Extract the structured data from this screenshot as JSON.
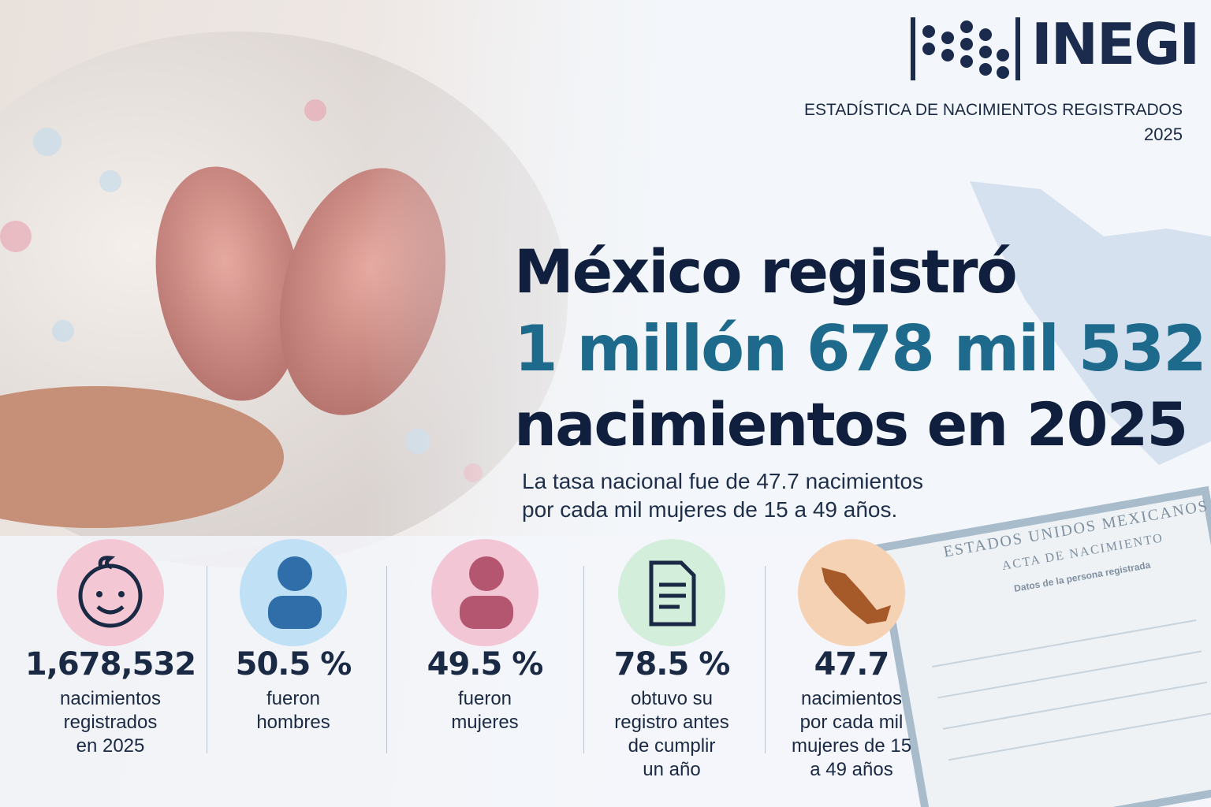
{
  "header": {
    "logo": "INEGI",
    "subtitle": "ESTADÍSTICA DE NACIMIENTOS REGISTRADOS",
    "year": "2025"
  },
  "headline": {
    "line1": "México registró",
    "line2": "1 millón 678 mil 532",
    "line3": "nacimientos en 2025",
    "description": [
      "La tasa nacional fue de 47.7 nacimientos",
      "por cada mil mujeres de 15 a 49 años."
    ]
  },
  "certificate": {
    "country": "ESTADOS UNIDOS MEXICANOS",
    "title": "ACTA DE NACIMIENTO",
    "section": "Datos de la persona registrada"
  },
  "stats": [
    {
      "value": "1,678,532",
      "label": [
        "nacimientos",
        "registrados",
        "en 2025"
      ]
    },
    {
      "value": "50.5 %",
      "label": [
        "fueron",
        "hombres"
      ]
    },
    {
      "value": "49.5 %",
      "label": [
        "fueron",
        "mujeres"
      ]
    },
    {
      "value": "78.5 %",
      "label": [
        "obtuvo su",
        "registro antes",
        "de cumplir",
        "un año"
      ]
    },
    {
      "value": "47.7",
      "label": [
        "nacimientos",
        "por cada mil",
        "mujeres de 15",
        "a 49 años"
      ]
    }
  ]
}
